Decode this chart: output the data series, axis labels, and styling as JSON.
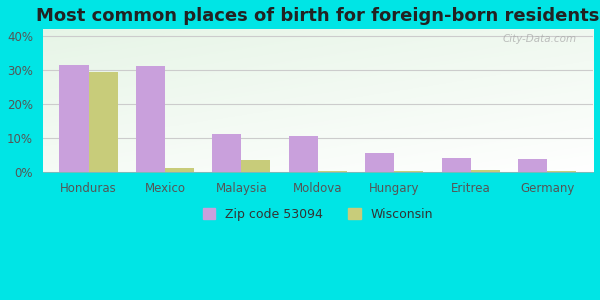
{
  "title": "Most common places of birth for foreign-born residents",
  "categories": [
    "Honduras",
    "Mexico",
    "Malaysia",
    "Moldova",
    "Hungary",
    "Eritrea",
    "Germany"
  ],
  "zip_values": [
    31.5,
    31.2,
    11.2,
    10.7,
    5.8,
    4.2,
    4.0
  ],
  "wi_values": [
    29.5,
    1.2,
    3.6,
    0.3,
    0.3,
    0.6,
    0.3
  ],
  "zip_color": "#c9a0dc",
  "wi_color": "#c8cc7a",
  "ylim": [
    0,
    42
  ],
  "yticks": [
    0,
    10,
    20,
    30,
    40
  ],
  "ytick_labels": [
    "0%",
    "10%",
    "20%",
    "30%",
    "40%"
  ],
  "bg_outer": "#00e5e5",
  "legend_zip_label": "Zip code 53094",
  "legend_wi_label": "Wisconsin",
  "bar_width": 0.38,
  "title_fontsize": 13,
  "axis_fontsize": 8.5,
  "legend_fontsize": 9,
  "watermark": "City-Data.com"
}
